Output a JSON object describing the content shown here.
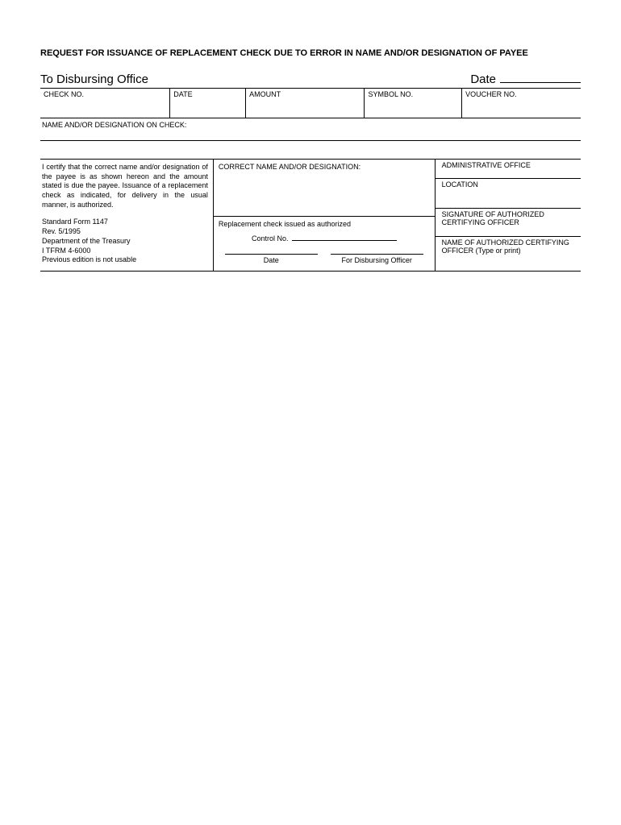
{
  "title": "REQUEST FOR ISSUANCE OF REPLACEMENT CHECK DUE TO ERROR IN NAME AND/OR DESIGNATION OF PAYEE",
  "header": {
    "to": "To Disbursing Office",
    "date_label": "Date"
  },
  "table1": {
    "check_no": "CHECK NO.",
    "date": "DATE",
    "amount": "AMOUNT",
    "symbol_no": "SYMBOL NO.",
    "voucher_no": "VOUCHER NO."
  },
  "name_on_check": "NAME AND/OR DESIGNATION ON CHECK:",
  "certify_text": "I certify that the correct name and/or designation of the payee is as shown hereon and the amount stated is due the payee. Issuance of a replacement check as indicated, for delivery in the usual manner, is authorized.",
  "form_info": {
    "l1": "Standard Form 1147",
    "l2": "Rev. 5/1995",
    "l3": "Department of the Treasury",
    "l4": "I TFRM 4-6000",
    "l5": "Previous edition is not usable"
  },
  "mid": {
    "correct_name": "CORRECT NAME AND/OR DESIGNATION:",
    "replacement": "Replacement check issued as authorized",
    "control_no": "Control No.",
    "date": "Date",
    "for_officer": "For Disbursing Officer"
  },
  "right": {
    "admin_office": "ADMINISTRATIVE OFFICE",
    "location": "LOCATION",
    "sig_officer": "SIGNATURE OF AUTHORIZED CERTIFYING OFFICER",
    "name_officer": "NAME OF AUTHORIZED CERTIFYING OFFICER (Type or print)"
  }
}
